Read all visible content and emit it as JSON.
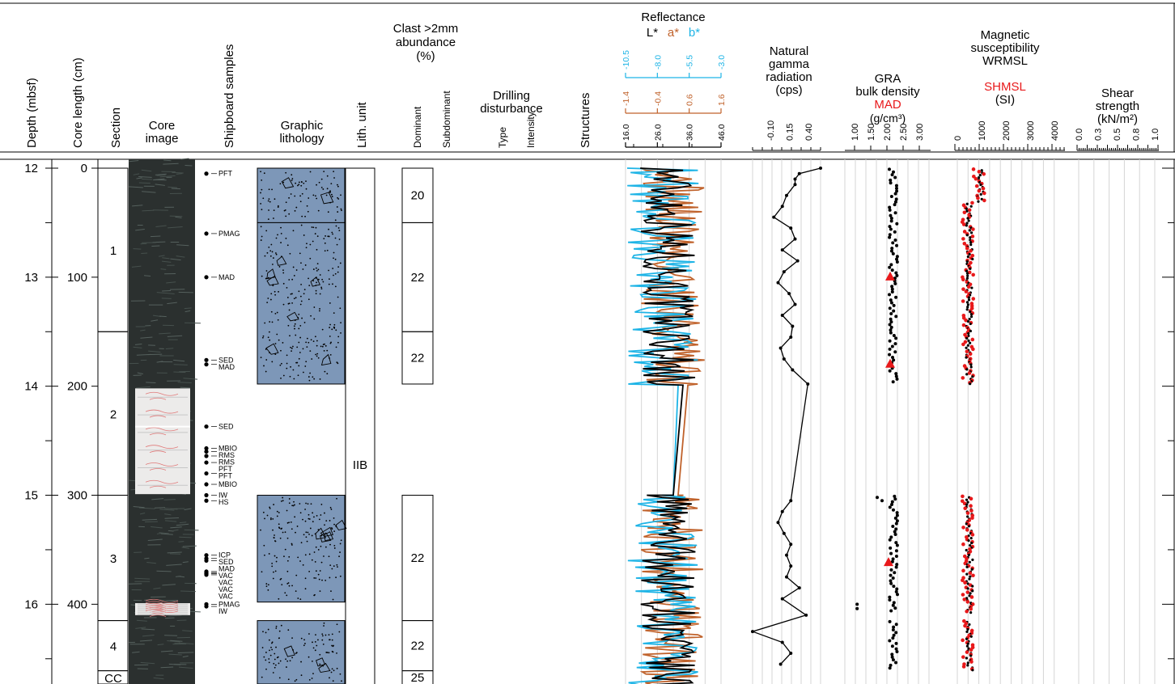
{
  "header": {
    "depth": "Depth (mbsf)",
    "core_length": "Core length (cm)",
    "section": "Section",
    "core_image": [
      "Core",
      "image"
    ],
    "shipboard_samples": "Shipboard samples",
    "graphic_lithology": [
      "Graphic",
      "lithology"
    ],
    "lith_unit": "Lith. unit",
    "clast": [
      "Clast >2mm",
      "abundance",
      "(%)"
    ],
    "dominant": "Dominant",
    "subdominant": "Subdominant",
    "drilling": [
      "Drilling",
      "disturbance"
    ],
    "type": "Type",
    "intensity": "Intensity",
    "structures": "Structures",
    "reflectance": "Reflectance",
    "refl_L": "L*",
    "refl_a": "a*",
    "refl_b": "b*",
    "ngr": [
      "Natural",
      "gamma",
      "radiation",
      "(cps)"
    ],
    "gra": [
      "GRA",
      "bulk density"
    ],
    "mad": "MAD",
    "gra_unit": "(g/cm³)",
    "ms": [
      "Magnetic",
      "susceptibility",
      "WRMSL"
    ],
    "shmsl": "SHMSL",
    "ms_unit": "(SI)",
    "shear": [
      "Shear",
      "strength",
      "(kN/m²)"
    ]
  },
  "colors": {
    "L": "#000000",
    "a": "#c0622b",
    "b": "#1eb4e6",
    "red": "#e8191b",
    "lith_fill": "#7d97b8"
  },
  "depth_axis": {
    "min": 12,
    "max": 16.75,
    "ticks": [
      12,
      13,
      14,
      15,
      16
    ]
  },
  "core_length_ticks": [
    0,
    100,
    200,
    300,
    400
  ],
  "sections": [
    {
      "label": "1",
      "top": 12.0,
      "bottom": 13.5
    },
    {
      "label": "2",
      "top": 13.5,
      "bottom": 15.0
    },
    {
      "label": "3",
      "top": 15.0,
      "bottom": 16.15
    },
    {
      "label": "4",
      "top": 16.15,
      "bottom": 16.61
    },
    {
      "label": "CC",
      "top": 16.61,
      "bottom": 16.75
    }
  ],
  "core_image_whitish": [
    [
      14.02,
      14.99
    ],
    [
      15.99,
      16.1
    ]
  ],
  "samples": [
    {
      "d": 12.05,
      "label": "PFT"
    },
    {
      "d": 12.6,
      "label": "PMAG"
    },
    {
      "d": 13.0,
      "label": "MAD"
    },
    {
      "d": 13.76,
      "label": "SED"
    },
    {
      "d": 13.8,
      "label": "MAD"
    },
    {
      "d": 14.37,
      "label": "SED"
    },
    {
      "d": 14.57,
      "label": "MBIO"
    },
    {
      "d": 14.6,
      "label": "RMS"
    },
    {
      "d": 14.64,
      "label": "RMS"
    },
    {
      "d": 14.7,
      "label": "PFT"
    },
    {
      "d": 14.8,
      "label": "PFT"
    },
    {
      "d": 14.9,
      "label": "MBIO"
    },
    {
      "d": 15.0,
      "label": "IW"
    },
    {
      "d": 15.05,
      "label": "HS"
    },
    {
      "d": 15.55,
      "label": "ICP"
    },
    {
      "d": 15.58,
      "label": "SED"
    },
    {
      "d": 15.6,
      "label": "MAD"
    },
    {
      "d": 15.7,
      "label": "VAC"
    },
    {
      "d": 15.71,
      "label": "VAC"
    },
    {
      "d": 15.72,
      "label": "VAC"
    },
    {
      "d": 15.73,
      "label": "VAC"
    },
    {
      "d": 16.0,
      "label": "PMAG"
    },
    {
      "d": 16.02,
      "label": "IW"
    }
  ],
  "lithology_blocks": [
    [
      12.0,
      12.5
    ],
    [
      12.5,
      13.98
    ],
    [
      15.0,
      15.98
    ],
    [
      16.15,
      16.75
    ]
  ],
  "lith_unit": {
    "label": "IIB",
    "top": 12.0,
    "bottom": 16.75
  },
  "clast_boxes": [
    {
      "top": 12.0,
      "bottom": 12.5,
      "value": "20"
    },
    {
      "top": 12.5,
      "bottom": 13.5,
      "value": "22"
    },
    {
      "top": 13.5,
      "bottom": 13.98,
      "value": "22"
    },
    {
      "top": 15.0,
      "bottom": 16.15,
      "value": "22"
    },
    {
      "top": 16.15,
      "bottom": 16.61,
      "value": "22"
    },
    {
      "top": 16.61,
      "bottom": 16.75,
      "value": "25"
    }
  ],
  "chart_data": [
    {
      "type": "line",
      "title": "Reflectance",
      "series": [
        {
          "name": "L*",
          "axis_ticks": [
            16.0,
            26.0,
            36.0,
            46.0
          ],
          "ylim": [
            16,
            46
          ]
        },
        {
          "name": "a*",
          "axis_ticks": [
            -1.4,
            -0.4,
            0.6,
            1.6
          ],
          "ylim": [
            -1.4,
            1.6
          ]
        },
        {
          "name": "b*",
          "axis_ticks": [
            -10.5,
            -8.0,
            -5.5,
            -3.0
          ],
          "ylim": [
            -10.5,
            -3.0
          ]
        }
      ],
      "x_axis": "Depth (mbsf)",
      "ylim_depth": [
        12,
        16.75
      ],
      "gaps": [
        [
          13.98,
          15.0
        ]
      ]
    },
    {
      "type": "line",
      "title": "Natural gamma radiation (cps)",
      "axis_ticks": [
        "-0.10",
        "0.15",
        "0.40"
      ],
      "xlim": [
        -0.25,
        0.55
      ],
      "depth": [
        12.0,
        12.05,
        12.1,
        12.15,
        12.25,
        12.35,
        12.45,
        12.55,
        12.65,
        12.75,
        12.85,
        12.95,
        13.05,
        13.15,
        13.25,
        13.35,
        13.45,
        13.55,
        13.65,
        13.75,
        13.85,
        13.98,
        15.05,
        15.15,
        15.25,
        15.35,
        15.45,
        15.55,
        15.65,
        15.75,
        15.85,
        15.95,
        16.1,
        16.25,
        16.35,
        16.45,
        16.55
      ],
      "values": [
        0.55,
        0.3,
        0.25,
        0.25,
        0.15,
        0.1,
        0.0,
        0.2,
        0.25,
        0.1,
        0.28,
        0.12,
        0.05,
        0.18,
        0.25,
        0.1,
        0.22,
        0.2,
        0.08,
        0.12,
        0.22,
        0.4,
        0.2,
        0.1,
        0.05,
        0.12,
        0.2,
        0.15,
        0.2,
        0.15,
        0.3,
        0.1,
        0.38,
        -0.25,
        0.1,
        0.2,
        0.08
      ]
    },
    {
      "type": "scatter",
      "title": "GRA bulk density (g/cm³)",
      "axis_ticks": [
        "1.00",
        "1.50",
        "2.00",
        "2.50",
        "3.00"
      ],
      "xlim": [
        1.0,
        3.0
      ],
      "mad_points": [
        {
          "depth": 13.0,
          "value": 2.1
        },
        {
          "depth": 13.8,
          "value": 2.1
        },
        {
          "depth": 15.62,
          "value": 2.05
        }
      ],
      "outliers": [
        {
          "depth": 15.02,
          "value": 1.7
        },
        {
          "depth": 15.05,
          "value": 1.85
        },
        {
          "depth": 16.0,
          "value": 1.08
        },
        {
          "depth": 16.04,
          "value": 1.08
        }
      ],
      "gaps": [
        [
          13.98,
          15.0
        ]
      ]
    },
    {
      "type": "scatter",
      "title": "Magnetic susceptibility WRMSL / SHMSL (SI)",
      "axis_ticks": [
        "0",
        "1000",
        "2000",
        "3000",
        "4000"
      ],
      "xlim": [
        0,
        4500
      ],
      "series": [
        {
          "name": "WRMSL"
        },
        {
          "name": "SHMSL"
        }
      ],
      "gaps": [
        [
          13.98,
          15.0
        ]
      ]
    },
    {
      "type": "scatter",
      "title": "Shear strength (kN/m²)",
      "axis_ticks": [
        "0.0",
        "0.3",
        "0.5",
        "0.8",
        "1.0"
      ],
      "xlim": [
        0,
        1.0
      ],
      "values": []
    }
  ]
}
